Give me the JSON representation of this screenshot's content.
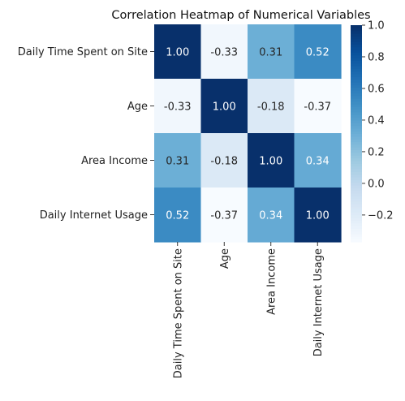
{
  "chart_data": {
    "type": "heatmap",
    "title": "Correlation Heatmap of Numerical Variables",
    "xlabel": "",
    "ylabel": "",
    "rows": [
      "Daily Time Spent on Site",
      "Age",
      "Area Income",
      "Daily Internet Usage"
    ],
    "cols": [
      "Daily Time Spent on Site",
      "Age",
      "Area Income",
      "Daily Internet Usage"
    ],
    "values": [
      [
        1.0,
        -0.33,
        0.31,
        0.52
      ],
      [
        -0.33,
        1.0,
        -0.18,
        -0.37
      ],
      [
        0.31,
        -0.18,
        1.0,
        0.34
      ],
      [
        0.52,
        -0.37,
        0.34,
        1.0
      ]
    ],
    "cell_labels": [
      [
        "1.00",
        "-0.33",
        "0.31",
        "0.52"
      ],
      [
        "-0.33",
        "1.00",
        "-0.18",
        "-0.37"
      ],
      [
        "0.31",
        "-0.18",
        "1.00",
        "0.34"
      ],
      [
        "0.52",
        "-0.37",
        "0.34",
        "1.00"
      ]
    ],
    "colormap": "Blues",
    "colorbar": {
      "vmin": -0.37,
      "vmax": 1.0,
      "ticks": [
        -0.2,
        0.0,
        0.2,
        0.4,
        0.6,
        0.8,
        1.0
      ],
      "tick_labels": [
        "−0.2",
        "0.0",
        "0.2",
        "0.4",
        "0.6",
        "0.8",
        "1.0"
      ]
    },
    "grid": false,
    "legend": "colorbar-right"
  }
}
